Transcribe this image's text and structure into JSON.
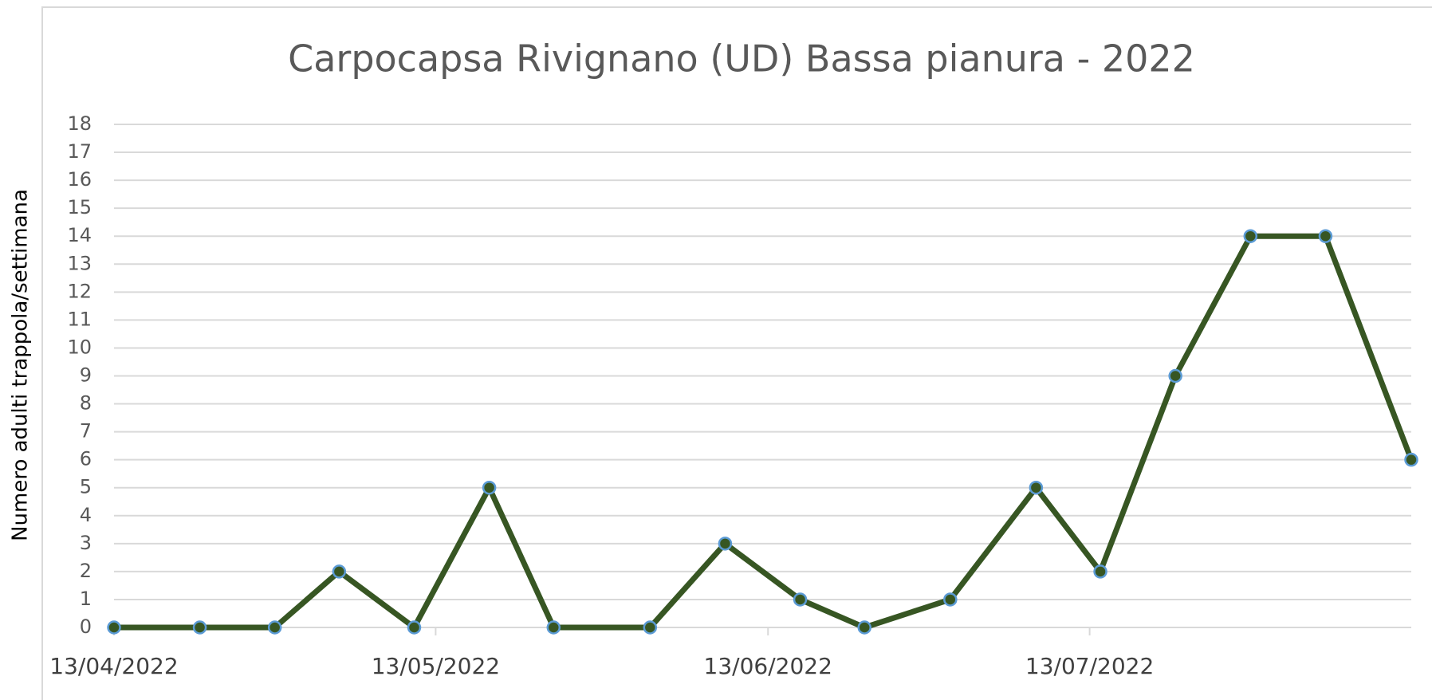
{
  "chart_data": {
    "type": "line",
    "title": "Carpocapsa Rivignano (UD) Bassa pianura - 2022",
    "y_label": "Numero adulti trappola/settimana",
    "x": [
      "2022-04-13",
      "2022-04-21",
      "2022-04-28",
      "2022-05-04",
      "2022-05-11",
      "2022-05-18",
      "2022-05-24",
      "2022-06-02",
      "2022-06-09",
      "2022-06-16",
      "2022-06-22",
      "2022-06-30",
      "2022-07-08",
      "2022-07-14",
      "2022-07-21",
      "2022-07-28",
      "2022-08-04",
      "2022-08-12"
    ],
    "series": [
      {
        "name": "Carpocapsa",
        "color": "#375623",
        "marker_edge": "#5b9bd5",
        "values": [
          0,
          0,
          0,
          2,
          0,
          5,
          0,
          0,
          3,
          1,
          0,
          1,
          5,
          2,
          9,
          14,
          14,
          6
        ]
      }
    ],
    "xlim": [
      "2022-04-13",
      "2022-08-12"
    ],
    "xticks": [
      {
        "value": "2022-04-13",
        "label": "13/04/2022"
      },
      {
        "value": "2022-05-13",
        "label": "13/05/2022"
      },
      {
        "value": "2022-06-13",
        "label": "13/06/2022"
      },
      {
        "value": "2022-07-13",
        "label": "13/07/2022"
      }
    ],
    "ylim": [
      0,
      18
    ],
    "yticks": [
      0,
      1,
      2,
      3,
      4,
      5,
      6,
      7,
      8,
      9,
      10,
      11,
      12,
      13,
      14,
      15,
      16,
      17,
      18
    ],
    "grid": true
  }
}
